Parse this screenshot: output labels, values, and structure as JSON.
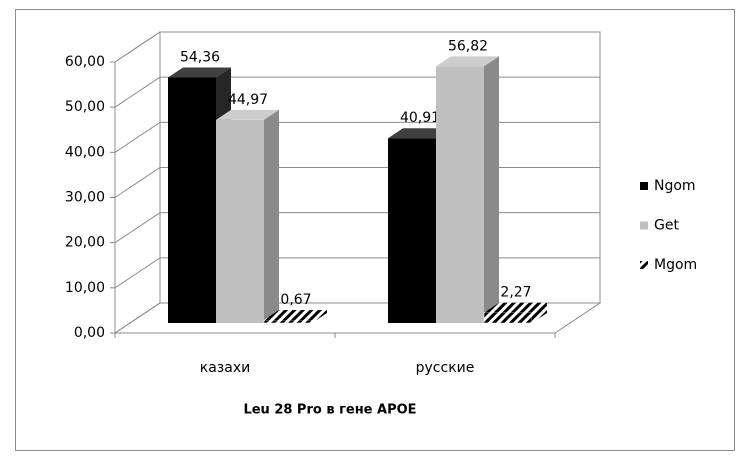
{
  "chart_data": {
    "type": "bar3d",
    "categories": [
      "казахи",
      "русские"
    ],
    "x_label": "Leu 28 Pro в гене  APOE",
    "series": [
      {
        "name": "Ngom",
        "color": "#000000",
        "values": [
          54.36,
          40.91
        ],
        "value_labels": [
          "54,36",
          "40,91"
        ]
      },
      {
        "name": "Get",
        "color": "#c0c0c0",
        "values": [
          44.97,
          56.82
        ],
        "value_labels": [
          "44,97",
          "56,82"
        ]
      },
      {
        "name": "Mgom",
        "color": "#000000",
        "pattern": "diagonal",
        "values": [
          0.67,
          2.27
        ],
        "value_labels": [
          "0,67",
          "2,27"
        ]
      }
    ],
    "ylim": [
      0,
      60
    ],
    "yticks": [
      {
        "value": 0,
        "label": "0,00"
      },
      {
        "value": 10,
        "label": "10,00"
      },
      {
        "value": 20,
        "label": "20,00"
      },
      {
        "value": 30,
        "label": "30,00"
      },
      {
        "value": 40,
        "label": "40,00"
      },
      {
        "value": 50,
        "label": "50,00"
      },
      {
        "value": 60,
        "label": "60,00"
      }
    ],
    "grid": true,
    "legend": "right"
  }
}
